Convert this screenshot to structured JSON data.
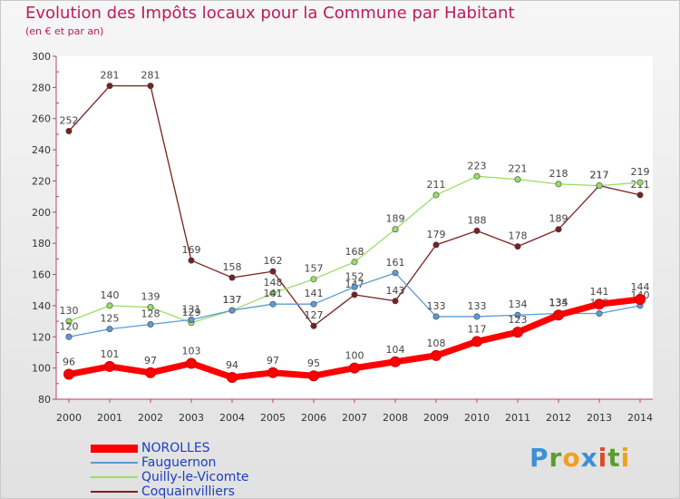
{
  "title": "Evolution des Impôts locaux pour la Commune par Habitant",
  "subtitle": "(en € et par an)",
  "logo_text": "Proxiti",
  "chart_data": {
    "type": "line",
    "title": "Evolution des Impôts locaux pour la Commune par Habitant",
    "subtitle": "(en € et par an)",
    "x": [
      "2000",
      "2001",
      "2002",
      "2003",
      "2004",
      "2005",
      "2006",
      "2007",
      "2008",
      "2009",
      "2010",
      "2011",
      "2012",
      "2013",
      "2014"
    ],
    "ylim": [
      80,
      300
    ],
    "yticks": [
      80,
      100,
      120,
      140,
      160,
      180,
      200,
      220,
      240,
      260,
      280,
      300
    ],
    "grid": false,
    "legend_position": "bottom-left",
    "series": [
      {
        "name": "NOROLLES",
        "color": "#ff0000",
        "values": [
          96,
          101,
          97,
          103,
          94,
          97,
          95,
          100,
          104,
          108,
          117,
          123,
          134,
          141,
          144
        ]
      },
      {
        "name": "Fauguernon",
        "color": "#5b9bd5",
        "values": [
          120,
          125,
          128,
          131,
          137,
          141,
          141,
          152,
          161,
          133,
          133,
          134,
          135,
          135,
          140
        ]
      },
      {
        "name": "Quilly-le-Vicomte",
        "color": "#99dd66",
        "values": [
          130,
          140,
          139,
          129,
          137,
          148,
          157,
          168,
          189,
          211,
          223,
          221,
          218,
          217,
          219
        ]
      },
      {
        "name": "Coquainvilliers",
        "color": "#7b1f1f",
        "values": [
          252,
          281,
          281,
          169,
          158,
          162,
          127,
          147,
          143,
          179,
          188,
          178,
          189,
          217,
          211
        ]
      }
    ]
  }
}
